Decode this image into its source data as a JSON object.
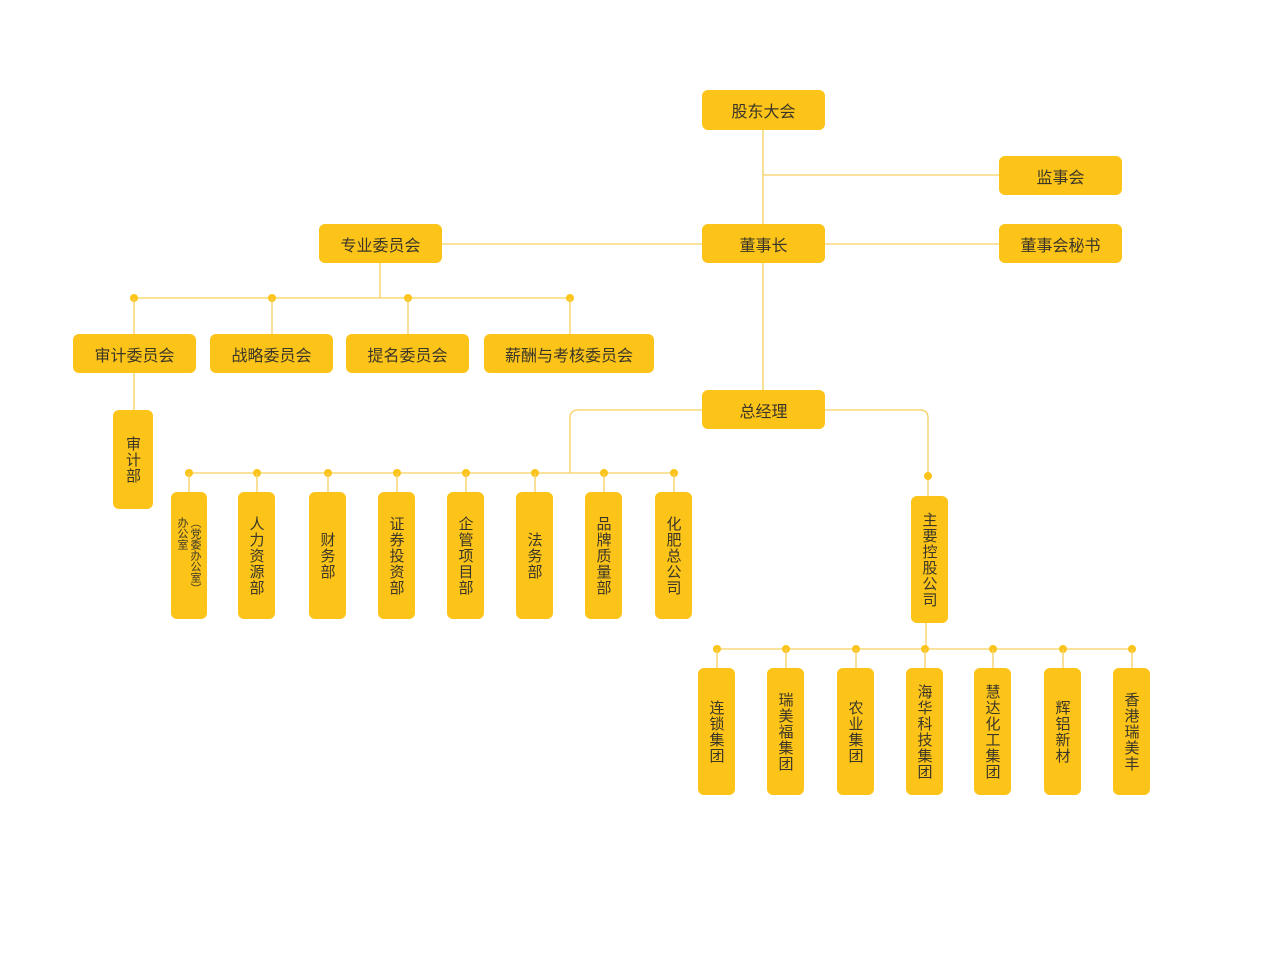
{
  "colors": {
    "box": "#fcc419",
    "line": "#f5d061",
    "text": "#3b3628"
  },
  "top": {
    "shareholders": "股东大会",
    "supervisors": "监事会",
    "chairman": "董事长",
    "board_secretary": "董事会秘书",
    "committees": "专业委员会",
    "general_manager": "总经理"
  },
  "committees": [
    "审计委员会",
    "战略委员会",
    "提名委员会",
    "薪酬与考核委员会"
  ],
  "audit_dept": "审计部",
  "departments": [
    "办公室（党委办公室）",
    "人力资源部",
    "财务部",
    "证券投资部",
    "企管项目部",
    "法务部",
    "品牌质量部",
    "化肥总公司"
  ],
  "office": {
    "main": "办公室",
    "sub": "（党委办公室）"
  },
  "holding": "主要控股公司",
  "subsidiaries": [
    "连锁集团",
    "瑞美福集团",
    "农业集团",
    "海华科技集团",
    "慧达化工集团",
    "辉铝新材",
    "香港瑞美丰"
  ]
}
